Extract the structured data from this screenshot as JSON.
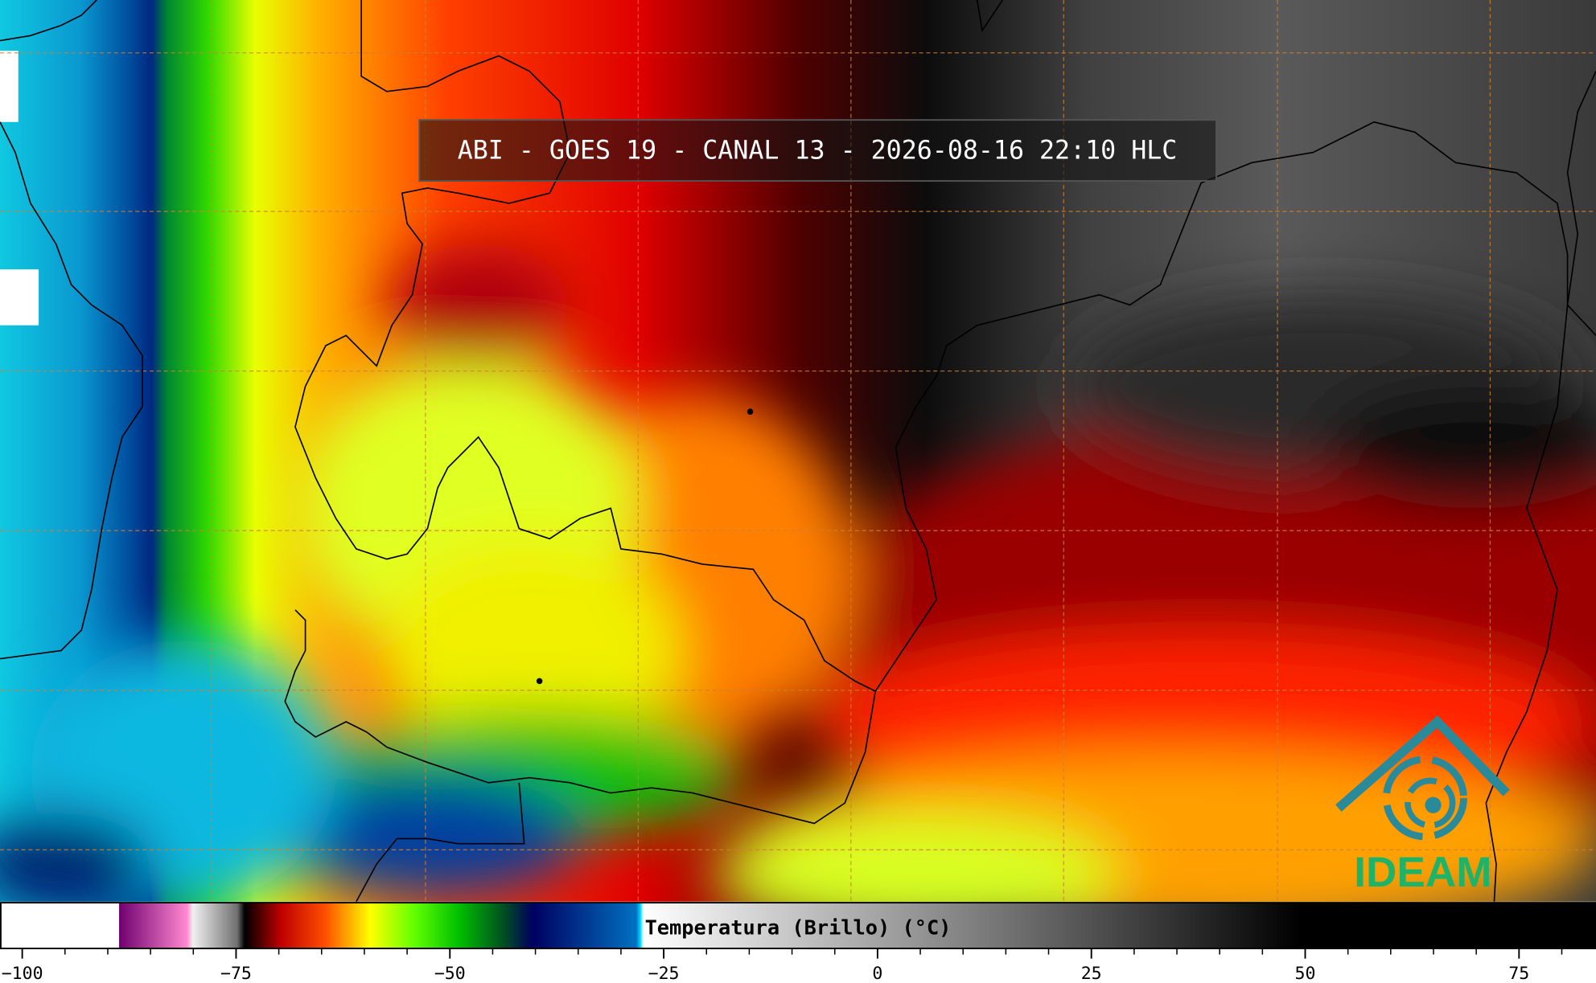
{
  "title": "ABI - GOES 19 - CANAL 13 - 2026-08-16 22:10 HLC",
  "colorbar": {
    "label": "Temperatura (Brillo) (°C)",
    "xlim": [
      -102.6,
      84.0
    ],
    "xticks": [
      {
        "value": -100,
        "label": "−100"
      },
      {
        "value": -75,
        "label": "−75"
      },
      {
        "value": -50,
        "label": "−50"
      },
      {
        "value": -25,
        "label": "−25"
      },
      0,
      25,
      50,
      75
    ]
  },
  "logo": {
    "text": "IDEAM"
  }
}
